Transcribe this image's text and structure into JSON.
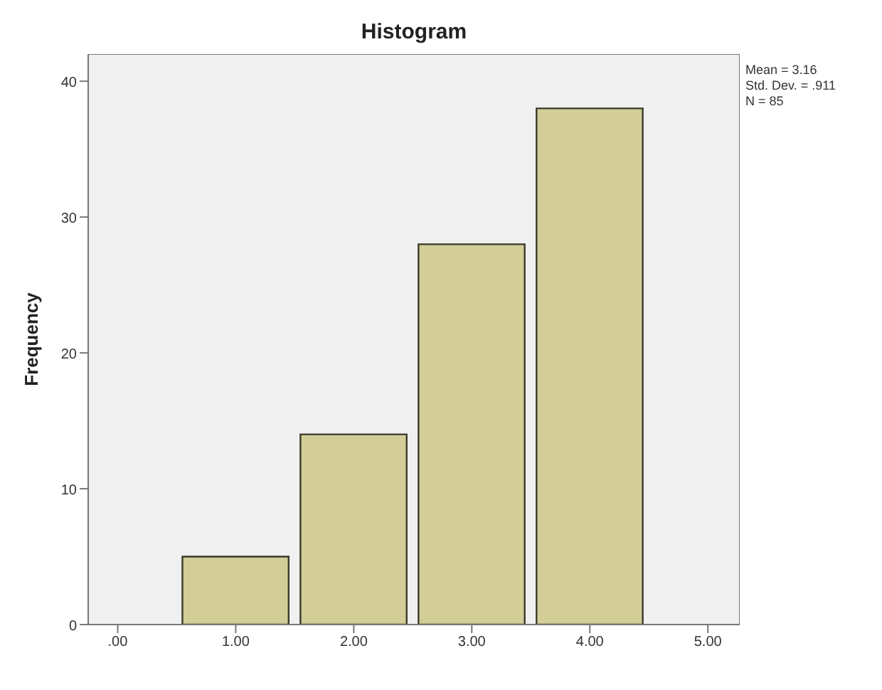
{
  "chart_data": {
    "type": "histogram",
    "title": "Histogram",
    "ylabel": "Frequency",
    "bins": [
      0.5,
      1.5,
      2.5,
      3.5,
      4.5
    ],
    "values": [
      5,
      14,
      28,
      38
    ],
    "color": "#d3ce98",
    "xlim": [
      -0.25,
      5.27
    ],
    "xticks": [
      {
        "value": 0,
        "label": ".00"
      },
      {
        "value": 1,
        "label": "1.00"
      },
      {
        "value": 2,
        "label": "2.00"
      },
      {
        "value": 3,
        "label": "3.00"
      },
      {
        "value": 4,
        "label": "4.00"
      },
      {
        "value": 5,
        "label": "5.00"
      }
    ],
    "ylim": [
      0,
      42
    ],
    "yticks": [
      0,
      10,
      20,
      30,
      40
    ],
    "grid": false,
    "legend": false,
    "annotations": [
      "Mean = 3.16",
      "Std. Dev. = .911",
      "N = 85"
    ]
  }
}
